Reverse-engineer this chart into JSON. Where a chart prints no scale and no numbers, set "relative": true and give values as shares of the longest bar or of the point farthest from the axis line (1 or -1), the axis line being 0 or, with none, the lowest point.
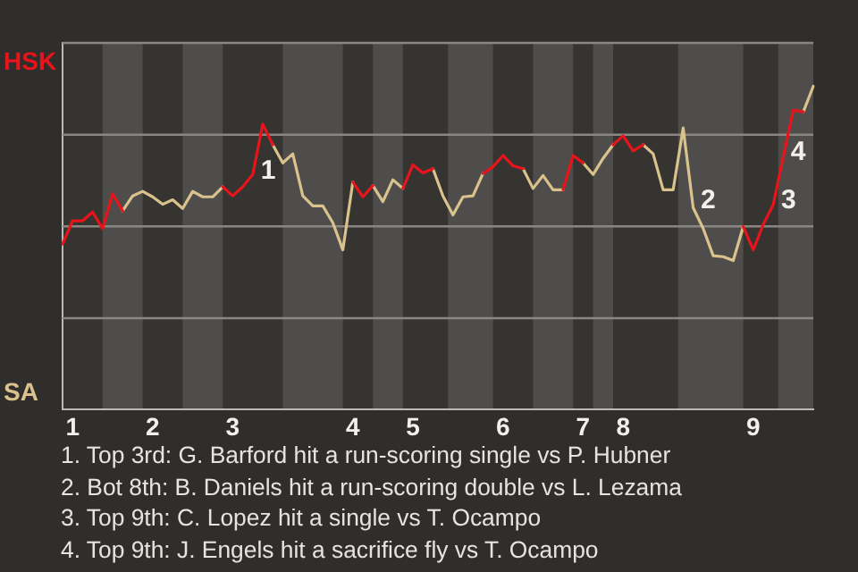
{
  "chart_data": {
    "type": "line",
    "relative": true,
    "categories": [
      null,
      "1",
      null,
      null,
      null,
      null,
      null,
      null,
      null,
      "2",
      null,
      null,
      null,
      null,
      null,
      null,
      null,
      "3",
      null,
      null,
      null,
      null,
      null,
      null,
      null,
      null,
      null,
      null,
      null,
      "4",
      null,
      null,
      null,
      null,
      null,
      "5",
      null,
      null,
      null,
      null,
      null,
      null,
      null,
      null,
      "6",
      null,
      null,
      null,
      null,
      null,
      null,
      null,
      "7",
      null,
      null,
      null,
      "8",
      null,
      null,
      null,
      null,
      null,
      null,
      null,
      null,
      null,
      null,
      null,
      null,
      "9",
      null,
      null,
      null,
      null,
      null,
      null
    ],
    "series": [
      {
        "color": "#e8141c",
        "values": [
          0.512,
          0.584,
          0.584,
          0.611,
          0.56,
          0.667,
          0.615,
          null,
          null,
          null,
          null,
          null,
          null,
          null,
          null,
          null,
          0.689,
          0.661,
          0.689,
          0.727,
          0.883,
          0.819,
          null,
          null,
          null,
          null,
          null,
          null,
          null,
          0.704,
          0.658,
          0.693,
          null,
          null,
          0.684,
          0.757,
          0.732,
          0.745,
          null,
          null,
          null,
          null,
          0.73,
          0.751,
          0.786,
          0.754,
          0.745,
          null,
          null,
          null,
          0.68,
          0.786,
          0.763,
          null,
          null,
          0.819,
          0.847,
          0.8,
          0.819,
          null,
          null,
          null,
          null,
          null,
          null,
          null,
          null,
          null,
          0.566,
          0.494,
          0.573,
          0.634,
          0.782,
          0.926,
          0.921,
          null
        ]
      },
      {
        "color": "#d9c28c",
        "values": [
          null,
          null,
          null,
          null,
          null,
          null,
          0.615,
          0.661,
          0.675,
          0.658,
          0.635,
          0.649,
          0.622,
          0.675,
          0.658,
          0.658,
          0.689,
          null,
          null,
          null,
          null,
          0.819,
          0.763,
          0.791,
          0.661,
          0.63,
          0.63,
          0.578,
          0.494,
          0.704,
          null,
          0.693,
          0.643,
          0.711,
          0.684,
          null,
          null,
          0.745,
          0.661,
          0.602,
          0.658,
          0.661,
          0.73,
          null,
          null,
          null,
          0.745,
          0.684,
          0.724,
          0.68,
          0.68,
          null,
          0.763,
          0.727,
          0.777,
          0.819,
          null,
          null,
          0.819,
          0.791,
          0.68,
          0.68,
          0.871,
          0.624,
          0.56,
          0.476,
          0.473,
          0.461,
          0.566,
          null,
          null,
          null,
          null,
          null,
          0.921,
          1
        ]
      }
    ],
    "ref_lines": [
      {
        "axis": "y",
        "value": 0.283,
        "color": "#8a8783"
      },
      {
        "axis": "y",
        "value": 0.567,
        "color": "#8a8783"
      },
      {
        "axis": "y",
        "value": 0.85,
        "color": "#8a8783"
      },
      {
        "axis": "y",
        "value": 1.134,
        "color": "#8a8783"
      }
    ],
    "marker": "none",
    "line_style": "solid",
    "annotations": [
      "HSK",
      "SA",
      "1",
      "2",
      "3",
      "4",
      "1. Top 3rd: G. Barford hit a run-scoring single vs P. Hubner",
      "2. Bot 8th: B. Daniels hit a run-scoring double vs L. Lezama",
      "3. Top 9th: C. Lopez hit a single vs T. Ocampo",
      "4. Top 9th: J. Engels hit a sacrifice fly vs T. Ocampo"
    ]
  }
}
